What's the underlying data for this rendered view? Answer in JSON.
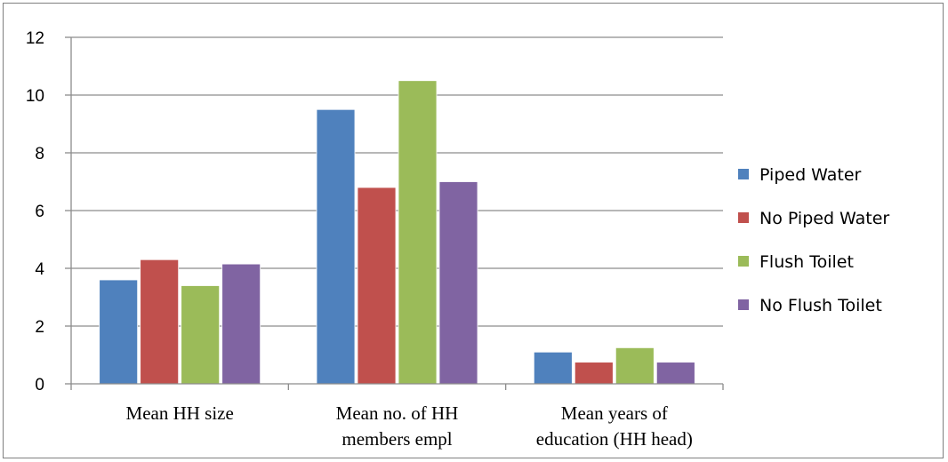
{
  "chart_data": {
    "type": "bar",
    "categories": [
      [
        "Mean HH size"
      ],
      [
        "Mean no. of HH",
        "members empl"
      ],
      [
        "Mean years of",
        "education (HH head)"
      ]
    ],
    "series": [
      {
        "name": "Piped Water",
        "color": "#4f81bd",
        "values": [
          3.6,
          9.5,
          1.1
        ]
      },
      {
        "name": "No Piped Water",
        "color": "#c0504d",
        "values": [
          4.3,
          6.8,
          0.75
        ]
      },
      {
        "name": "Flush Toilet",
        "color": "#9bbb59",
        "values": [
          3.4,
          10.5,
          1.25
        ]
      },
      {
        "name": "No Flush Toilet",
        "color": "#8064a2",
        "values": [
          4.15,
          7.0,
          0.75
        ]
      }
    ],
    "ylim": [
      0,
      12
    ],
    "yticks": [
      0,
      2,
      4,
      6,
      8,
      10,
      12
    ],
    "grid": true,
    "legend_position": "right",
    "title": "",
    "xlabel": "",
    "ylabel": ""
  }
}
